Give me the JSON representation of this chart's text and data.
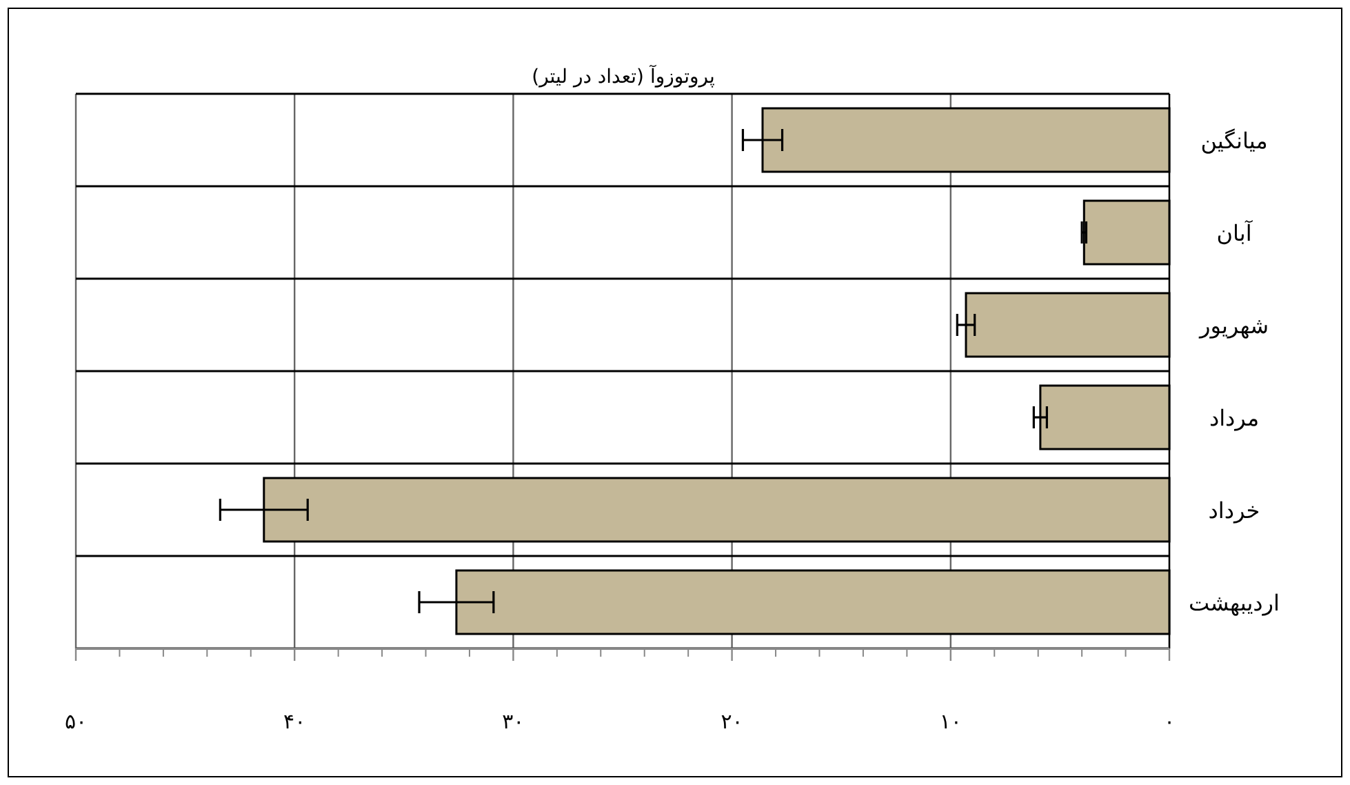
{
  "chart_data": {
    "type": "bar",
    "orientation": "horizontal",
    "title": "پروتوزوآ (تعداد در لیتر)",
    "categories": [
      "میانگین",
      "آبان",
      "شهریور",
      "مرداد",
      "خرداد",
      "اردیبهشت"
    ],
    "values": [
      18.6,
      3.9,
      9.3,
      5.9,
      41.4,
      32.6
    ],
    "errors": [
      0.9,
      0.1,
      0.4,
      0.3,
      2.0,
      1.7
    ],
    "color": "#c4b898",
    "xlim": [
      50,
      0
    ],
    "xticks": [
      {
        "value": 50,
        "label": "۵۰"
      },
      {
        "value": 40,
        "label": "۴۰"
      },
      {
        "value": 30,
        "label": "۳۰"
      },
      {
        "value": 20,
        "label": "۲۰"
      },
      {
        "value": 10,
        "label": "۱۰"
      },
      {
        "value": 0,
        "label": "۰"
      }
    ],
    "grid": true
  }
}
